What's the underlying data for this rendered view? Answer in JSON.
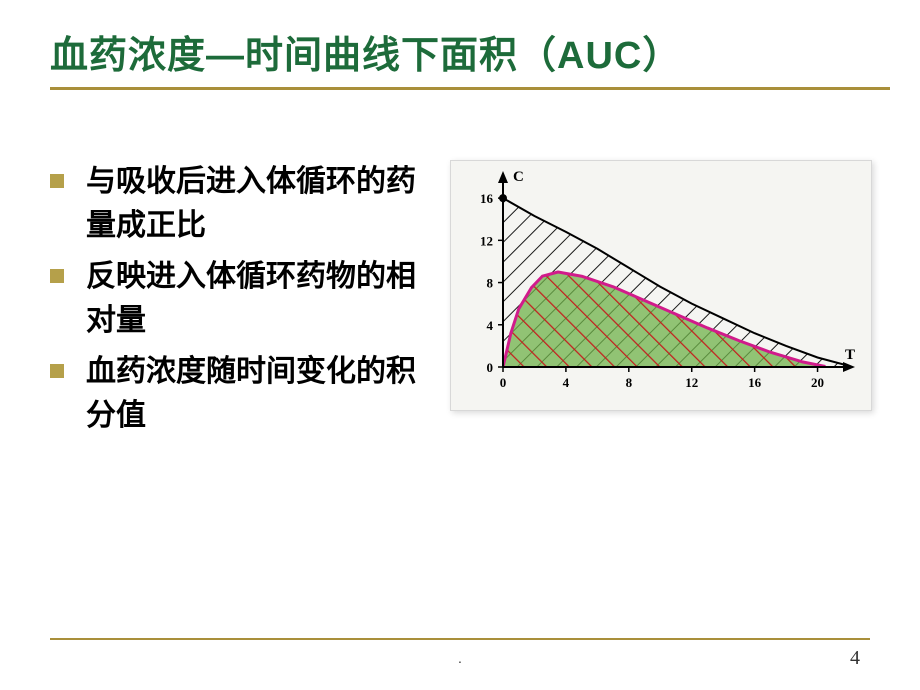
{
  "title": "血药浓度—时间曲线下面积（AUC）",
  "bullets": [
    "与吸收后进入体循环的药量成正比",
    "反映进入体循环药物的相对量",
    "血药浓度随时间变化的积分值"
  ],
  "chart": {
    "type": "area",
    "x_label": "T",
    "y_label": "C",
    "x_ticks": [
      0,
      4,
      8,
      12,
      16,
      20
    ],
    "y_ticks": [
      0,
      4,
      8,
      12,
      16
    ],
    "xlim": [
      0,
      22
    ],
    "ylim": [
      0,
      18
    ],
    "background_color": "#f5f5f2",
    "axis_color": "#000000",
    "axis_width": 2,
    "tick_fontsize": 13,
    "label_fontsize": 15,
    "curve_iv": {
      "description": "IV decay starting at C=16, t=0 down to 0 near t=22",
      "points": [
        [
          0,
          16
        ],
        [
          2,
          14.3
        ],
        [
          4,
          12.8
        ],
        [
          6,
          11.2
        ],
        [
          8,
          9.4
        ],
        [
          10,
          7.6
        ],
        [
          12,
          6.0
        ],
        [
          14,
          4.6
        ],
        [
          16,
          3.2
        ],
        [
          18,
          2.0
        ],
        [
          20,
          0.9
        ],
        [
          22,
          0.1
        ]
      ],
      "stroke_color": "#000000",
      "stroke_width": 2,
      "hatch_color": "#1a1a1a",
      "hatch_spacing": 14,
      "hatch_width": 2
    },
    "curve_oral": {
      "description": "Oral absorption: rise then fall, peaks ~9 near t=3.5",
      "points": [
        [
          0,
          0
        ],
        [
          0.5,
          3.2
        ],
        [
          1,
          5.5
        ],
        [
          1.8,
          7.5
        ],
        [
          2.5,
          8.6
        ],
        [
          3.5,
          9.0
        ],
        [
          5,
          8.6
        ],
        [
          7,
          7.6
        ],
        [
          9,
          6.3
        ],
        [
          11,
          5.0
        ],
        [
          13,
          3.7
        ],
        [
          15,
          2.5
        ],
        [
          17,
          1.4
        ],
        [
          19,
          0.5
        ],
        [
          20.5,
          0.05
        ]
      ],
      "stroke_color": "#d11b8b",
      "stroke_width": 3,
      "fill_color": "#6fb24a",
      "fill_opacity": 0.75,
      "hatch_color": "#c41e1e",
      "hatch_spacing": 16,
      "hatch_width": 2.5
    }
  },
  "page_number": "4",
  "footer_mark": ".",
  "colors": {
    "title_color": "#1d6b3a",
    "accent_line": "#a98f3a",
    "bullet_marker": "#b5a04a",
    "text_color": "#000000"
  }
}
